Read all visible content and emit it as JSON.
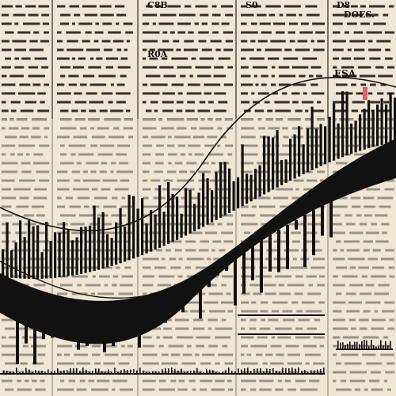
{
  "palette": {
    "paper": "#efe6d3",
    "ink": "#111111",
    "rule": "#2a2a2a",
    "accent": "#d9646b"
  },
  "printed_text": {
    "col3_header": "C8B",
    "col4_header": "S0",
    "col5_header": "D8",
    "col5_subheader": "DOES.",
    "col5_mid": "ESA",
    "col3_mid": "R0A"
  }
}
